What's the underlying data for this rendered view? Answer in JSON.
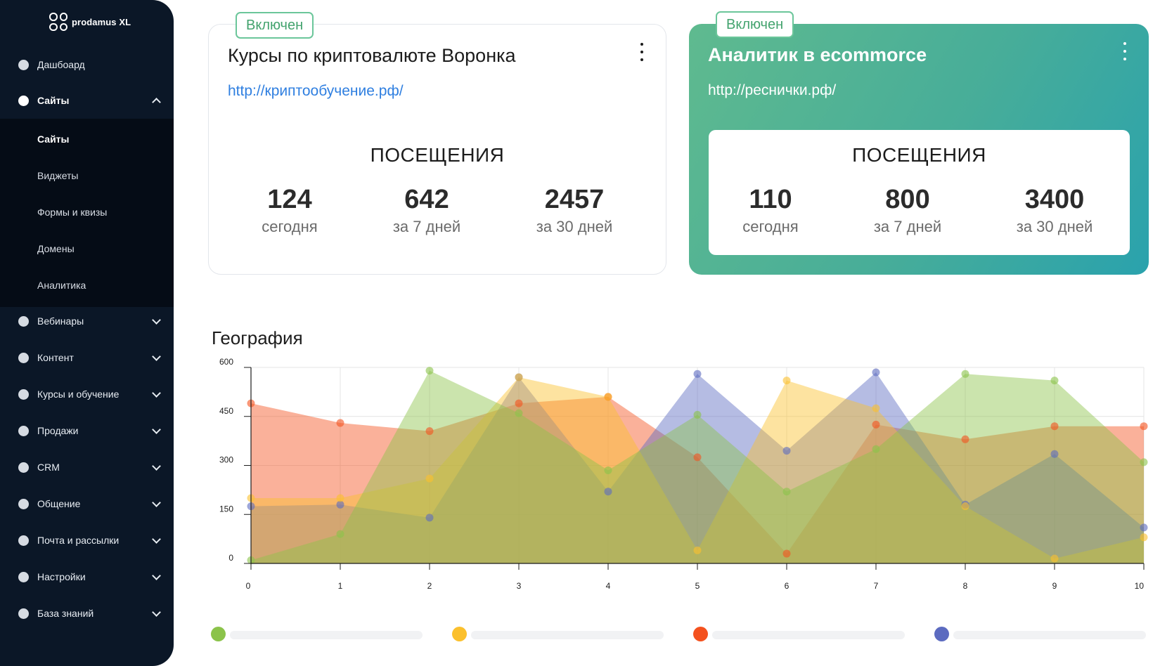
{
  "sidebar": {
    "logo_text": "prodamus XL",
    "items": [
      {
        "label": "Дашбоард"
      },
      {
        "label": "Сайты"
      },
      {
        "label": "Вебинары"
      },
      {
        "label": "Контент"
      },
      {
        "label": "Курсы и обучение"
      },
      {
        "label": "Продажи"
      },
      {
        "label": "CRM"
      },
      {
        "label": "Общение"
      },
      {
        "label": "Почта и рассылки"
      },
      {
        "label": "Настройки"
      },
      {
        "label": "База знаний"
      }
    ],
    "submenu": [
      {
        "label": "Сайты"
      },
      {
        "label": "Виджеты"
      },
      {
        "label": "Формы и квизы"
      },
      {
        "label": "Домены"
      },
      {
        "label": "Аналитика"
      }
    ]
  },
  "cards": [
    {
      "badge": "Включен",
      "title": "Курсы по криптовалюте Воронка",
      "url": "http://криптообучение.рф/",
      "visits_title": "ПОСЕЩЕНИЯ",
      "stats": [
        {
          "value": "124",
          "label": "сегодня"
        },
        {
          "value": "642",
          "label": "за 7 дней"
        },
        {
          "value": "2457",
          "label": "за 30 дней"
        }
      ]
    },
    {
      "badge": "Включен",
      "title": "Аналитик в ecommorce",
      "url": "http://реснички.рф/",
      "visits_title": "ПОСЕЩЕНИЯ",
      "stats": [
        {
          "value": "110",
          "label": "сегодня"
        },
        {
          "value": "800",
          "label": "за 7 дней"
        },
        {
          "value": "3400",
          "label": "за 30 дней"
        }
      ]
    }
  ],
  "geo_title": "География",
  "colors": {
    "green": "#8bc34a",
    "yellow": "#fbc02d",
    "red": "#f4511e",
    "blue": "#5c6bc0",
    "sidebar_bg": "#0b1727",
    "accent_green": "#43a36e"
  },
  "chart_data": {
    "type": "area",
    "title": "",
    "xlabel": "",
    "ylabel": "",
    "x": [
      0,
      1,
      2,
      3,
      4,
      5,
      6,
      7,
      8,
      9,
      10
    ],
    "ylim": [
      0,
      600
    ],
    "xlim": [
      0,
      10
    ],
    "yticks": [
      0,
      150,
      300,
      450,
      600
    ],
    "xticks": [
      0,
      1,
      2,
      3,
      4,
      5,
      6,
      7,
      8,
      9,
      10
    ],
    "grid": true,
    "legend": "bottom",
    "series": [
      {
        "color": "#f4511e",
        "values": [
          490,
          430,
          405,
          490,
          510,
          325,
          30,
          425,
          380,
          420,
          420
        ]
      },
      {
        "color": "#5c6bc0",
        "values": [
          175,
          180,
          140,
          570,
          220,
          580,
          345,
          585,
          180,
          335,
          110
        ]
      },
      {
        "color": "#fbc02d",
        "values": [
          200,
          200,
          260,
          570,
          510,
          40,
          560,
          475,
          175,
          15,
          80
        ]
      },
      {
        "color": "#8bc34a",
        "values": [
          10,
          90,
          590,
          460,
          285,
          455,
          220,
          350,
          580,
          560,
          310
        ]
      }
    ]
  }
}
